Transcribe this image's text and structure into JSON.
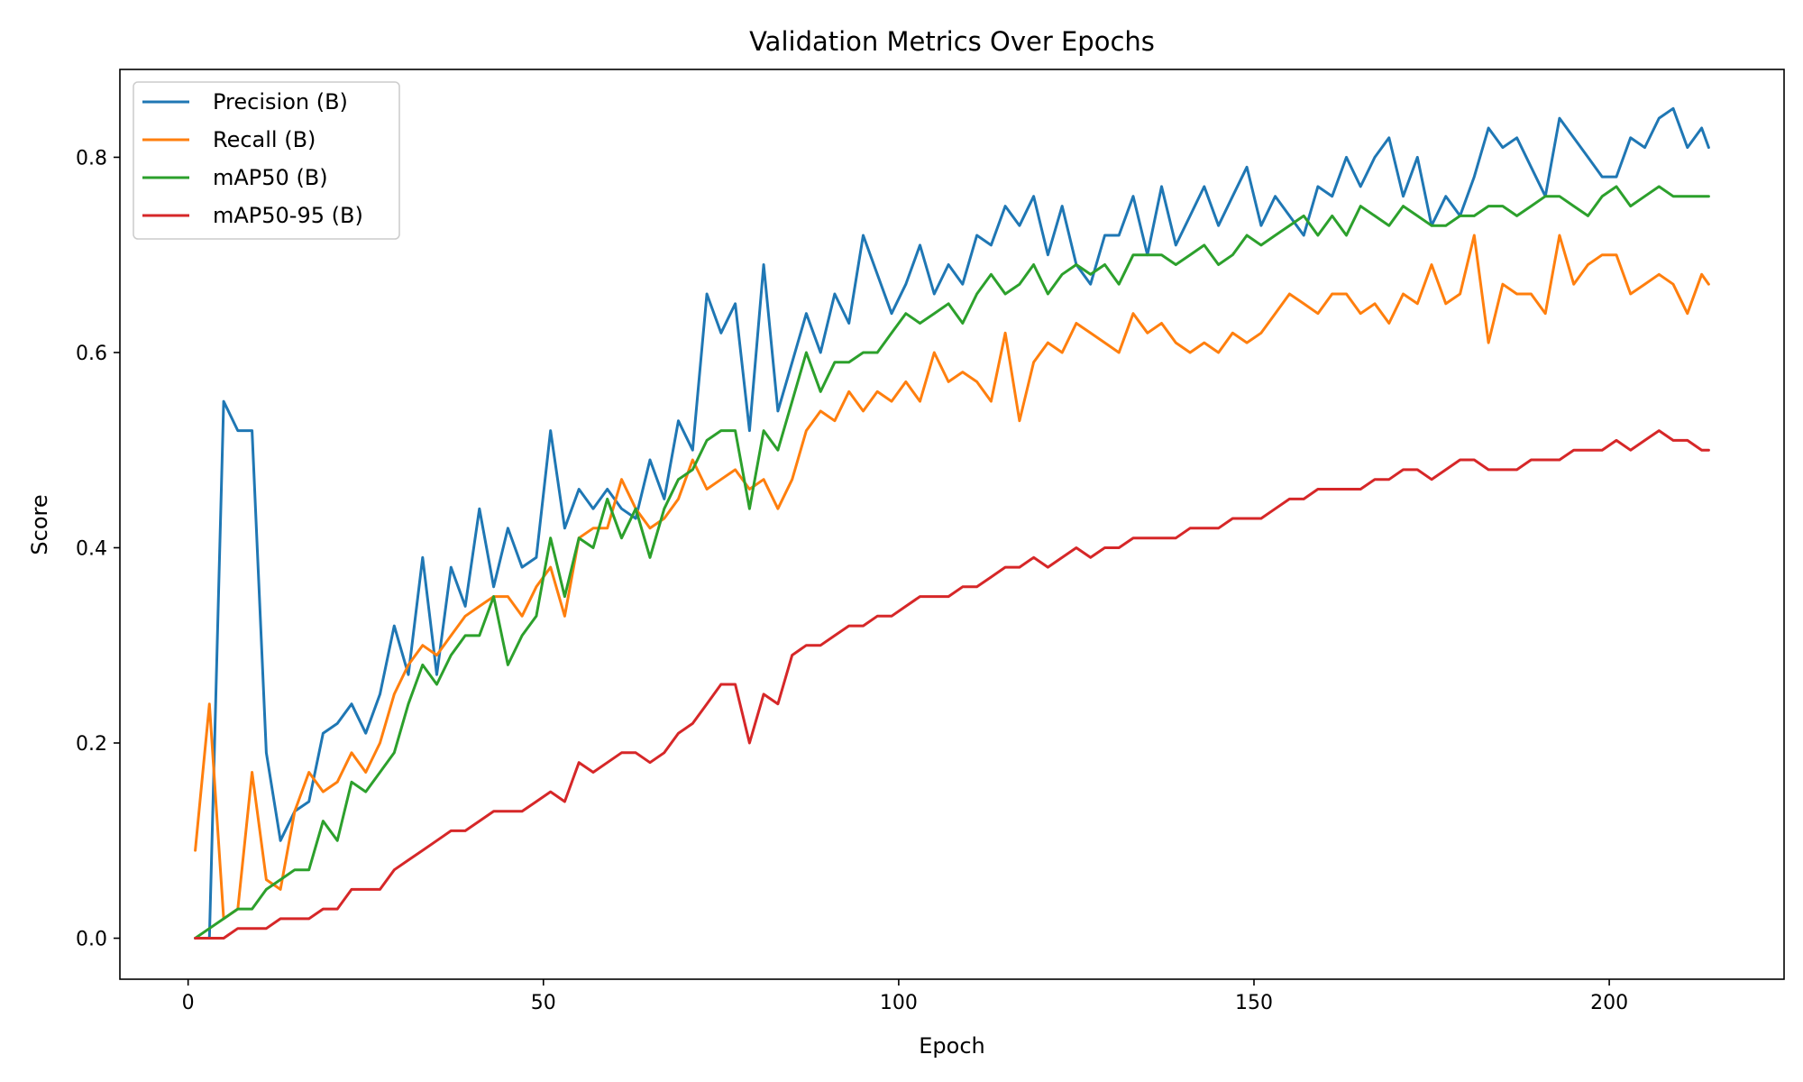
{
  "chart_data": {
    "type": "line",
    "title": "Validation Metrics Over Epochs",
    "xlabel": "Epoch",
    "ylabel": "Score",
    "xlim": [
      -9.6,
      224.6
    ],
    "ylim": [
      -0.042,
      0.89
    ],
    "xticks": [
      0,
      50,
      100,
      150,
      200
    ],
    "yticks": [
      0.0,
      0.2,
      0.4,
      0.6,
      0.8
    ],
    "xtick_labels": [
      "0",
      "50",
      "100",
      "150",
      "200"
    ],
    "ytick_labels": [
      "0.0",
      "0.2",
      "0.4",
      "0.6",
      "0.8"
    ],
    "grid": false,
    "legend_position": "top-left",
    "x": [
      1,
      3,
      5,
      7,
      9,
      11,
      13,
      15,
      17,
      19,
      21,
      23,
      25,
      27,
      29,
      31,
      33,
      35,
      37,
      39,
      41,
      43,
      45,
      47,
      49,
      51,
      53,
      55,
      57,
      59,
      61,
      63,
      65,
      67,
      69,
      71,
      73,
      75,
      77,
      79,
      81,
      83,
      85,
      87,
      89,
      91,
      93,
      95,
      97,
      99,
      101,
      103,
      105,
      107,
      109,
      111,
      113,
      115,
      117,
      119,
      121,
      123,
      125,
      127,
      129,
      131,
      133,
      135,
      137,
      139,
      141,
      143,
      145,
      147,
      149,
      151,
      153,
      155,
      157,
      159,
      161,
      163,
      165,
      167,
      169,
      171,
      173,
      175,
      177,
      179,
      181,
      183,
      185,
      187,
      189,
      191,
      193,
      195,
      197,
      199,
      201,
      203,
      205,
      207,
      209,
      211,
      213,
      214
    ],
    "series": [
      {
        "name": "Precision (B)",
        "color": "#1f77b4",
        "values": [
          0.0,
          0.0,
          0.55,
          0.52,
          0.52,
          0.19,
          0.1,
          0.13,
          0.14,
          0.21,
          0.22,
          0.24,
          0.21,
          0.25,
          0.32,
          0.27,
          0.39,
          0.27,
          0.38,
          0.34,
          0.44,
          0.36,
          0.42,
          0.38,
          0.39,
          0.52,
          0.42,
          0.46,
          0.44,
          0.46,
          0.44,
          0.43,
          0.49,
          0.45,
          0.53,
          0.5,
          0.66,
          0.62,
          0.65,
          0.52,
          0.69,
          0.54,
          0.59,
          0.64,
          0.6,
          0.66,
          0.63,
          0.72,
          0.68,
          0.64,
          0.67,
          0.71,
          0.66,
          0.69,
          0.67,
          0.72,
          0.71,
          0.75,
          0.73,
          0.76,
          0.7,
          0.75,
          0.69,
          0.67,
          0.72,
          0.72,
          0.76,
          0.7,
          0.77,
          0.71,
          0.74,
          0.77,
          0.73,
          0.76,
          0.79,
          0.73,
          0.76,
          0.74,
          0.72,
          0.77,
          0.76,
          0.8,
          0.77,
          0.8,
          0.82,
          0.76,
          0.8,
          0.73,
          0.76,
          0.74,
          0.78,
          0.83,
          0.81,
          0.82,
          0.79,
          0.76,
          0.84,
          0.82,
          0.8,
          0.78,
          0.78,
          0.82,
          0.81,
          0.84,
          0.85,
          0.81,
          0.83,
          0.81
        ]
      },
      {
        "name": "Recall (B)",
        "color": "#ff7f0e",
        "values": [
          0.09,
          0.24,
          0.02,
          0.03,
          0.17,
          0.06,
          0.05,
          0.13,
          0.17,
          0.15,
          0.16,
          0.19,
          0.17,
          0.2,
          0.25,
          0.28,
          0.3,
          0.29,
          0.31,
          0.33,
          0.34,
          0.35,
          0.35,
          0.33,
          0.36,
          0.38,
          0.33,
          0.41,
          0.42,
          0.42,
          0.47,
          0.44,
          0.42,
          0.43,
          0.45,
          0.49,
          0.46,
          0.47,
          0.48,
          0.46,
          0.47,
          0.44,
          0.47,
          0.52,
          0.54,
          0.53,
          0.56,
          0.54,
          0.56,
          0.55,
          0.57,
          0.55,
          0.6,
          0.57,
          0.58,
          0.57,
          0.55,
          0.62,
          0.53,
          0.59,
          0.61,
          0.6,
          0.63,
          0.62,
          0.61,
          0.6,
          0.64,
          0.62,
          0.63,
          0.61,
          0.6,
          0.61,
          0.6,
          0.62,
          0.61,
          0.62,
          0.64,
          0.66,
          0.65,
          0.64,
          0.66,
          0.66,
          0.64,
          0.65,
          0.63,
          0.66,
          0.65,
          0.69,
          0.65,
          0.66,
          0.72,
          0.61,
          0.67,
          0.66,
          0.66,
          0.64,
          0.72,
          0.67,
          0.69,
          0.7,
          0.7,
          0.66,
          0.67,
          0.68,
          0.67,
          0.64,
          0.68,
          0.67
        ]
      },
      {
        "name": "mAP50 (B)",
        "color": "#2ca02c",
        "values": [
          0.0,
          0.01,
          0.02,
          0.03,
          0.03,
          0.05,
          0.06,
          0.07,
          0.07,
          0.12,
          0.1,
          0.16,
          0.15,
          0.17,
          0.19,
          0.24,
          0.28,
          0.26,
          0.29,
          0.31,
          0.31,
          0.35,
          0.28,
          0.31,
          0.33,
          0.41,
          0.35,
          0.41,
          0.4,
          0.45,
          0.41,
          0.44,
          0.39,
          0.44,
          0.47,
          0.48,
          0.51,
          0.52,
          0.52,
          0.44,
          0.52,
          0.5,
          0.55,
          0.6,
          0.56,
          0.59,
          0.59,
          0.6,
          0.6,
          0.62,
          0.64,
          0.63,
          0.64,
          0.65,
          0.63,
          0.66,
          0.68,
          0.66,
          0.67,
          0.69,
          0.66,
          0.68,
          0.69,
          0.68,
          0.69,
          0.67,
          0.7,
          0.7,
          0.7,
          0.69,
          0.7,
          0.71,
          0.69,
          0.7,
          0.72,
          0.71,
          0.72,
          0.73,
          0.74,
          0.72,
          0.74,
          0.72,
          0.75,
          0.74,
          0.73,
          0.75,
          0.74,
          0.73,
          0.73,
          0.74,
          0.74,
          0.75,
          0.75,
          0.74,
          0.75,
          0.76,
          0.76,
          0.75,
          0.74,
          0.76,
          0.77,
          0.75,
          0.76,
          0.77,
          0.76,
          0.76,
          0.76,
          0.76
        ]
      },
      {
        "name": "mAP50-95 (B)",
        "color": "#d62728",
        "values": [
          0.0,
          0.0,
          0.0,
          0.01,
          0.01,
          0.01,
          0.02,
          0.02,
          0.02,
          0.03,
          0.03,
          0.05,
          0.05,
          0.05,
          0.07,
          0.08,
          0.09,
          0.1,
          0.11,
          0.11,
          0.12,
          0.13,
          0.13,
          0.13,
          0.14,
          0.15,
          0.14,
          0.18,
          0.17,
          0.18,
          0.19,
          0.19,
          0.18,
          0.19,
          0.21,
          0.22,
          0.24,
          0.26,
          0.26,
          0.2,
          0.25,
          0.24,
          0.29,
          0.3,
          0.3,
          0.31,
          0.32,
          0.32,
          0.33,
          0.33,
          0.34,
          0.35,
          0.35,
          0.35,
          0.36,
          0.36,
          0.37,
          0.38,
          0.38,
          0.39,
          0.38,
          0.39,
          0.4,
          0.39,
          0.4,
          0.4,
          0.41,
          0.41,
          0.41,
          0.41,
          0.42,
          0.42,
          0.42,
          0.43,
          0.43,
          0.43,
          0.44,
          0.45,
          0.45,
          0.46,
          0.46,
          0.46,
          0.46,
          0.47,
          0.47,
          0.48,
          0.48,
          0.47,
          0.48,
          0.49,
          0.49,
          0.48,
          0.48,
          0.48,
          0.49,
          0.49,
          0.49,
          0.5,
          0.5,
          0.5,
          0.51,
          0.5,
          0.51,
          0.52,
          0.51,
          0.51,
          0.5,
          0.5
        ]
      }
    ]
  }
}
